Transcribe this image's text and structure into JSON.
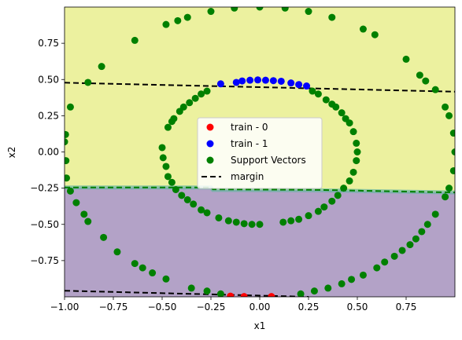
{
  "chart_data": {
    "type": "scatter",
    "title": "",
    "xlabel": "x1",
    "ylabel": "x2",
    "xlim": [
      -1.0,
      1.0
    ],
    "ylim": [
      -1.0,
      1.0
    ],
    "xticks": [
      -1.0,
      -0.75,
      -0.5,
      -0.25,
      0.0,
      0.25,
      0.5,
      0.75
    ],
    "xtick_labels": [
      "−1.00",
      "−0.75",
      "−0.50",
      "−0.25",
      "0.00",
      "0.25",
      "0.50",
      "0.75"
    ],
    "yticks": [
      0.75,
      0.5,
      0.25,
      0.0,
      -0.25,
      -0.5,
      -0.75
    ],
    "ytick_labels": [
      "0.75",
      "0.50",
      "0.25",
      "0.00",
      "−0.25",
      "−0.50",
      "−0.75"
    ],
    "grid": false,
    "legend_position": "center",
    "regions": {
      "upper_color": "#ecf19f",
      "lower_color": "#b3a2c7",
      "boundary_color": "#68b5a4",
      "boundary": [
        [
          -1.0,
          -0.245
        ],
        [
          -0.25,
          -0.245
        ],
        [
          -0.24,
          -0.262
        ],
        [
          0.3,
          -0.265
        ],
        [
          1.0,
          -0.28
        ]
      ]
    },
    "margin_lines": [
      [
        [
          -1.0,
          0.478
        ],
        [
          1.0,
          0.416
        ]
      ],
      [
        [
          -1.0,
          -0.958
        ],
        [
          0.25,
          -1.0
        ]
      ]
    ],
    "boundary_line": [
      [
        -1.0,
        -0.245
      ],
      [
        -0.25,
        -0.245
      ],
      [
        -0.24,
        -0.258
      ],
      [
        0.3,
        -0.262
      ],
      [
        1.0,
        -0.28
      ]
    ],
    "series": [
      {
        "name": "train - 0",
        "color": "#ff0000",
        "points": [
          [
            -0.15,
            -0.995
          ],
          [
            -0.08,
            -0.998
          ],
          [
            0.06,
            -0.998
          ]
        ]
      },
      {
        "name": "train - 1",
        "color": "#0000ff",
        "points": [
          [
            -0.2,
            0.47
          ],
          [
            -0.12,
            0.48
          ],
          [
            -0.09,
            0.49
          ],
          [
            -0.05,
            0.495
          ],
          [
            -0.01,
            0.497
          ],
          [
            0.03,
            0.495
          ],
          [
            0.07,
            0.492
          ],
          [
            0.11,
            0.488
          ],
          [
            0.16,
            0.476
          ],
          [
            0.2,
            0.465
          ],
          [
            0.24,
            0.455
          ]
        ]
      },
      {
        "name": "Support Vectors",
        "color": "#008000",
        "points": [
          [
            0.0,
            1.0
          ],
          [
            0.13,
            0.993
          ],
          [
            0.25,
            0.97
          ],
          [
            -0.13,
            0.993
          ],
          [
            -0.25,
            0.97
          ],
          [
            -0.37,
            0.929
          ],
          [
            -0.42,
            0.906
          ],
          [
            -0.48,
            0.88
          ],
          [
            0.37,
            0.929
          ],
          [
            0.53,
            0.848
          ],
          [
            0.59,
            0.809
          ],
          [
            0.75,
            0.64
          ],
          [
            0.82,
            0.53
          ],
          [
            0.85,
            0.49
          ],
          [
            0.9,
            0.43
          ],
          [
            0.95,
            0.31
          ],
          [
            0.97,
            0.25
          ],
          [
            0.993,
            0.13
          ],
          [
            1.0,
            0.0
          ],
          [
            0.993,
            -0.13
          ],
          [
            0.97,
            -0.25
          ],
          [
            0.95,
            -0.31
          ],
          [
            0.9,
            -0.43
          ],
          [
            0.86,
            -0.5
          ],
          [
            0.83,
            -0.55
          ],
          [
            0.8,
            -0.6
          ],
          [
            0.77,
            -0.64
          ],
          [
            0.73,
            -0.68
          ],
          [
            0.69,
            -0.72
          ],
          [
            0.64,
            -0.76
          ],
          [
            0.6,
            -0.8
          ],
          [
            0.53,
            -0.85
          ],
          [
            0.47,
            -0.88
          ],
          [
            0.42,
            -0.91
          ],
          [
            0.35,
            -0.94
          ],
          [
            0.28,
            -0.96
          ],
          [
            0.21,
            -0.98
          ],
          [
            -0.2,
            -0.98
          ],
          [
            -0.27,
            -0.96
          ],
          [
            -0.35,
            -0.94
          ],
          [
            -0.48,
            -0.877
          ],
          [
            -0.55,
            -0.835
          ],
          [
            -0.6,
            -0.8
          ],
          [
            -0.64,
            -0.77
          ],
          [
            -0.73,
            -0.69
          ],
          [
            -0.8,
            -0.59
          ],
          [
            -0.88,
            -0.48
          ],
          [
            -0.9,
            -0.43
          ],
          [
            -0.94,
            -0.35
          ],
          [
            -0.97,
            -0.27
          ],
          [
            -0.99,
            -0.18
          ],
          [
            -0.993,
            -0.06
          ],
          [
            -1.0,
            0.07
          ],
          [
            -0.97,
            0.31
          ],
          [
            -0.88,
            0.48
          ],
          [
            -0.81,
            0.59
          ],
          [
            -0.64,
            0.77
          ],
          [
            -0.995,
            0.12
          ],
          [
            0.0,
            -0.5
          ],
          [
            -0.04,
            -0.5
          ],
          [
            -0.08,
            -0.495
          ],
          [
            -0.12,
            -0.485
          ],
          [
            -0.16,
            -0.475
          ],
          [
            0.12,
            -0.485
          ],
          [
            0.16,
            -0.475
          ],
          [
            0.2,
            -0.465
          ],
          [
            0.25,
            -0.44
          ],
          [
            0.3,
            -0.41
          ],
          [
            0.33,
            -0.38
          ],
          [
            0.37,
            -0.34
          ],
          [
            0.4,
            -0.3
          ],
          [
            0.43,
            -0.25
          ],
          [
            0.46,
            -0.2
          ],
          [
            0.48,
            -0.14
          ],
          [
            0.495,
            -0.06
          ],
          [
            0.5,
            0.0
          ],
          [
            0.495,
            0.06
          ],
          [
            0.48,
            0.14
          ],
          [
            0.46,
            0.2
          ],
          [
            0.44,
            0.23
          ],
          [
            0.42,
            0.27
          ],
          [
            0.39,
            0.31
          ],
          [
            0.37,
            0.33
          ],
          [
            0.34,
            0.36
          ],
          [
            0.3,
            0.4
          ],
          [
            0.27,
            0.42
          ],
          [
            -0.27,
            0.42
          ],
          [
            -0.3,
            0.4
          ],
          [
            -0.33,
            0.37
          ],
          [
            -0.36,
            0.34
          ],
          [
            -0.39,
            0.31
          ],
          [
            -0.41,
            0.28
          ],
          [
            -0.44,
            0.23
          ],
          [
            -0.45,
            0.21
          ],
          [
            -0.47,
            0.17
          ],
          [
            -0.5,
            0.03
          ],
          [
            -0.495,
            -0.04
          ],
          [
            -0.48,
            -0.1
          ],
          [
            -0.47,
            -0.17
          ],
          [
            -0.45,
            -0.21
          ],
          [
            -0.43,
            -0.26
          ],
          [
            -0.4,
            -0.3
          ],
          [
            -0.37,
            -0.33
          ],
          [
            -0.34,
            -0.36
          ],
          [
            -0.3,
            -0.4
          ],
          [
            -0.27,
            -0.42
          ],
          [
            -0.21,
            -0.455
          ]
        ]
      }
    ],
    "legend": {
      "entries": [
        {
          "label": "train - 0",
          "kind": "marker",
          "color": "#ff0000"
        },
        {
          "label": "train - 1",
          "kind": "marker",
          "color": "#0000ff"
        },
        {
          "label": "Support Vectors",
          "kind": "marker",
          "color": "#008000"
        },
        {
          "label": "margin",
          "kind": "dashed-line",
          "color": "#000000"
        }
      ]
    }
  }
}
